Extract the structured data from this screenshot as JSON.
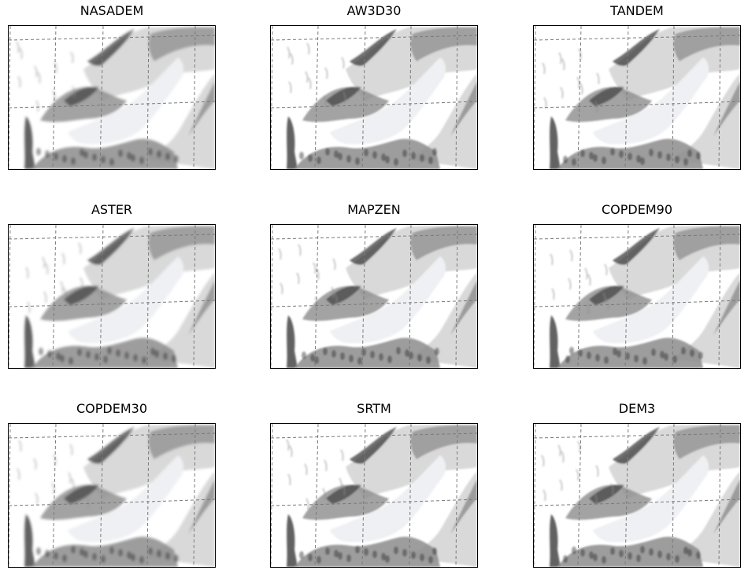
{
  "panels": [
    {
      "title": "NASADEM"
    },
    {
      "title": "AW3D30"
    },
    {
      "title": "TANDEM"
    },
    {
      "title": "ASTER"
    },
    {
      "title": "MAPZEN"
    },
    {
      "title": "COPDEM90"
    },
    {
      "title": "COPDEM30"
    },
    {
      "title": "SRTM"
    },
    {
      "title": "DEM3"
    }
  ],
  "colors": {
    "background": "#ffffff",
    "frame": "#000000",
    "grid": "#7a7a7a",
    "shade_dark": "#2f2f2f",
    "shade_mid": "#8c8c8c",
    "shade_light": "#d9d9d9",
    "glacier": "#eef0f3"
  }
}
